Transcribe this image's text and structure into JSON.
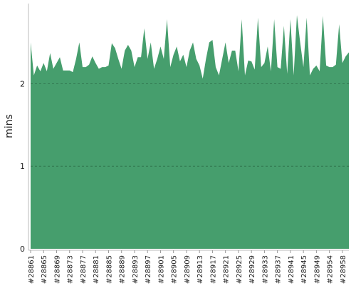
{
  "chart_data": {
    "type": "area",
    "y_label": "mins",
    "color": "#469e6d",
    "categories": [
      "#28861",
      null,
      null,
      null,
      "#28865",
      null,
      null,
      null,
      "#28869",
      null,
      null,
      null,
      "#28873",
      null,
      null,
      null,
      "#28877",
      null,
      null,
      null,
      "#28881",
      null,
      null,
      null,
      "#28885",
      null,
      null,
      null,
      "#28889",
      null,
      null,
      null,
      "#28893",
      null,
      null,
      null,
      "#28897",
      null,
      null,
      null,
      "#28901",
      null,
      null,
      null,
      "#28905",
      null,
      null,
      null,
      "#28909",
      null,
      null,
      null,
      "#28913",
      null,
      null,
      null,
      "#28917",
      null,
      null,
      null,
      "#28921",
      null,
      null,
      null,
      "#28925",
      null,
      null,
      null,
      "#28929",
      null,
      null,
      null,
      "#28933",
      null,
      null,
      null,
      "#28937",
      null,
      null,
      null,
      "#28941",
      null,
      null,
      null,
      "#28945",
      null,
      null,
      null,
      "#28949",
      null,
      null,
      null,
      "#28954",
      null,
      null,
      null,
      "#28958",
      null,
      null
    ],
    "values": [
      2.5,
      2.1,
      2.22,
      2.15,
      2.25,
      2.15,
      2.37,
      2.18,
      2.25,
      2.32,
      2.16,
      2.16,
      2.16,
      2.14,
      2.3,
      2.5,
      2.2,
      2.2,
      2.23,
      2.33,
      2.25,
      2.18,
      2.2,
      2.2,
      2.22,
      2.49,
      2.43,
      2.3,
      2.18,
      2.4,
      2.47,
      2.4,
      2.2,
      2.32,
      2.32,
      2.67,
      2.3,
      2.5,
      2.18,
      2.3,
      2.45,
      2.3,
      2.78,
      2.2,
      2.35,
      2.45,
      2.27,
      2.35,
      2.2,
      2.4,
      2.5,
      2.3,
      2.22,
      2.06,
      2.3,
      2.5,
      2.53,
      2.2,
      2.1,
      2.3,
      2.5,
      2.25,
      2.4,
      2.4,
      2.15,
      2.78,
      2.1,
      2.28,
      2.27,
      2.17,
      2.8,
      2.2,
      2.25,
      2.45,
      2.15,
      2.78,
      2.2,
      2.18,
      2.7,
      2.12,
      2.78,
      2.1,
      2.83,
      2.5,
      2.2,
      2.8,
      2.1,
      2.18,
      2.22,
      2.15,
      2.82,
      2.22,
      2.2,
      2.2,
      2.23,
      2.72,
      2.25,
      2.33,
      2.38
    ],
    "ylim": [
      0,
      2.97
    ],
    "yticks": [
      0,
      1,
      2
    ],
    "grid": true
  }
}
